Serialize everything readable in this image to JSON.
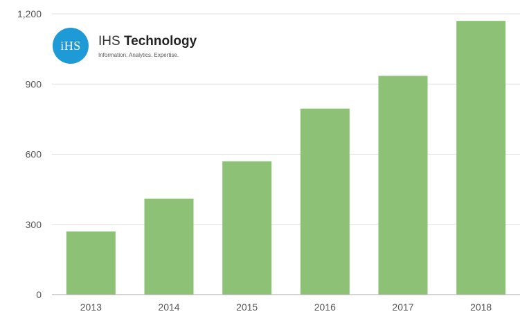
{
  "chart_data": {
    "type": "bar",
    "categories": [
      "2013",
      "2014",
      "2015",
      "2016",
      "2017",
      "2018"
    ],
    "values": [
      270,
      410,
      570,
      795,
      935,
      1170
    ],
    "title": "",
    "xlabel": "",
    "ylabel": "",
    "ylim": [
      0,
      1200
    ],
    "yticks": [
      0,
      300,
      600,
      900,
      1200
    ],
    "ytick_labels": [
      "0",
      "300",
      "600",
      "900",
      "1,200"
    ],
    "grid": true,
    "bar_color": "#8dc276",
    "grid_color": "#e0e0e0"
  },
  "logo": {
    "mark": "iHS",
    "brand_light": "IHS",
    "brand_bold": "Technology",
    "tagline": "Information. Analytics. Expertise.",
    "color": "#1e9ad6"
  }
}
